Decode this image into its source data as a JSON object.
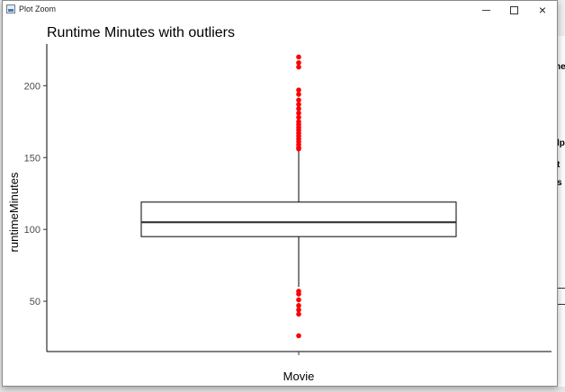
{
  "window": {
    "title": "Plot Zoom",
    "controls": {
      "minimize": "minimize",
      "maximize": "maximize",
      "close": "×"
    }
  },
  "background_app": {
    "fragments": [
      "ne",
      "lp",
      "t",
      "s"
    ]
  },
  "chart_data": {
    "type": "boxplot",
    "title": "Runtime Minutes with outliers",
    "xlabel": "",
    "ylabel": "runtimeMinutes",
    "categories": [
      "Movie"
    ],
    "ylim": [
      15,
      229
    ],
    "yticks": [
      50,
      100,
      150,
      200
    ],
    "grid": false,
    "legend": "none",
    "box": {
      "q1": 95,
      "median": 105,
      "q3": 119,
      "whisker_low": 60,
      "whisker_high": 155
    },
    "outliers": [
      220,
      216,
      213,
      197,
      194,
      190,
      187,
      184,
      181,
      178,
      175,
      173,
      171,
      169,
      167,
      165,
      163,
      161,
      159,
      157,
      156,
      57,
      55,
      51,
      47,
      44,
      41,
      26
    ],
    "colors": {
      "outlier": "#ff0000",
      "box": "#000000",
      "median": "#333333",
      "axis": "#000000"
    }
  }
}
